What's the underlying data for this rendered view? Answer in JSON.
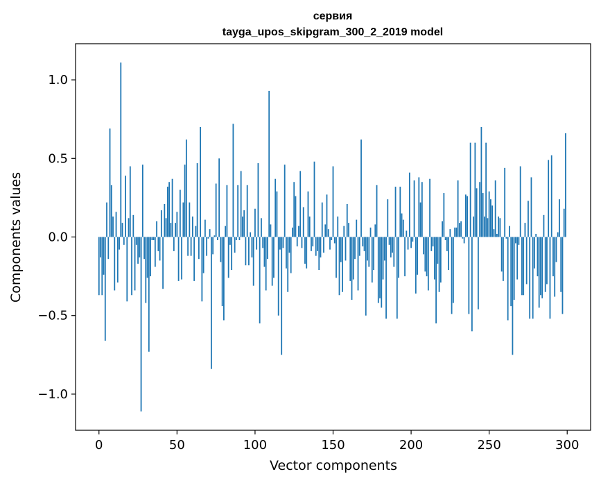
{
  "chart_data": {
    "type": "bar",
    "title": "сервия",
    "subtitle": "tayga_upos_skipgram_300_2_2019 model",
    "xlabel": "Vector components",
    "ylabel": "Components values",
    "xlim": [
      -15,
      315
    ],
    "ylim": [
      -1.23,
      1.23
    ],
    "xticks": [
      0,
      50,
      100,
      150,
      200,
      250,
      300
    ],
    "yticks": [
      -1.0,
      -0.5,
      0.0,
      0.5,
      1.0
    ],
    "xtick_labels": [
      "0",
      "50",
      "100",
      "150",
      "200",
      "250",
      "300"
    ],
    "ytick_labels": [
      "−1.0",
      "−0.5",
      "0.0",
      "0.5",
      "1.0"
    ],
    "grid": false,
    "bar_color": "#1f77b4",
    "values": [
      -0.37,
      -0.13,
      -0.37,
      -0.24,
      -0.66,
      0.22,
      -0.14,
      0.69,
      0.33,
      0.13,
      -0.34,
      0.16,
      -0.29,
      -0.08,
      1.11,
      0.09,
      -0.05,
      0.39,
      -0.41,
      0.12,
      0.45,
      -0.37,
      0.14,
      -0.34,
      -0.05,
      -0.17,
      -0.13,
      -1.11,
      0.46,
      -0.14,
      -0.42,
      -0.26,
      -0.73,
      -0.25,
      -0.02,
      -0.02,
      -0.19,
      0.1,
      -0.09,
      -0.15,
      0.17,
      -0.33,
      0.21,
      0.12,
      0.32,
      0.35,
      0.09,
      0.37,
      -0.09,
      0.09,
      0.16,
      -0.28,
      0.3,
      -0.27,
      0.22,
      0.46,
      0.62,
      -0.12,
      0.22,
      -0.12,
      0.13,
      -0.28,
      0.07,
      0.47,
      -0.14,
      0.7,
      -0.41,
      -0.23,
      0.11,
      -0.12,
      -0.01,
      0.05,
      -0.84,
      -0.11,
      0.01,
      0.34,
      -0.02,
      0.5,
      -0.16,
      -0.44,
      -0.53,
      0.07,
      0.33,
      -0.26,
      -0.05,
      -0.21,
      0.72,
      -0.1,
      -0.02,
      0.33,
      -0.02,
      0.42,
      0.13,
      0.17,
      -0.18,
      0.33,
      -0.18,
      0.03,
      -0.13,
      -0.31,
      0.18,
      -0.08,
      0.47,
      -0.55,
      0.12,
      -0.07,
      -0.19,
      -0.34,
      -0.14,
      0.93,
      0.08,
      -0.31,
      -0.26,
      0.37,
      0.29,
      -0.5,
      -0.08,
      -0.75,
      -0.07,
      0.46,
      -0.2,
      -0.35,
      -0.1,
      -0.23,
      0.06,
      0.35,
      0.26,
      -0.06,
      0.07,
      0.42,
      -0.07,
      0.19,
      -0.17,
      -0.2,
      0.29,
      0.13,
      -0.09,
      -0.06,
      0.48,
      -0.12,
      -0.09,
      -0.21,
      -0.13,
      0.22,
      -0.1,
      0.08,
      0.27,
      0.05,
      -0.08,
      -0.02,
      0.45,
      -0.04,
      -0.26,
      0.13,
      -0.37,
      -0.16,
      -0.35,
      0.07,
      -0.15,
      0.21,
      0.09,
      -0.28,
      -0.4,
      -0.27,
      -0.14,
      0.11,
      -0.34,
      -0.12,
      0.62,
      -0.06,
      -0.09,
      -0.5,
      -0.15,
      -0.19,
      0.06,
      -0.29,
      -0.21,
      0.08,
      0.33,
      -0.42,
      -0.39,
      -0.45,
      -0.27,
      -0.15,
      -0.52,
      0.24,
      -0.05,
      -0.13,
      -0.1,
      -0.19,
      0.32,
      -0.52,
      -0.26,
      0.32,
      0.15,
      0.11,
      -0.25,
      0.04,
      -0.08,
      0.41,
      -0.07,
      -0.03,
      0.36,
      -0.36,
      -0.24,
      0.38,
      0.22,
      0.35,
      -0.11,
      -0.22,
      -0.25,
      -0.34,
      0.37,
      -0.09,
      -0.06,
      -0.27,
      -0.55,
      -0.17,
      -0.35,
      -0.29,
      0.1,
      0.28,
      -0.02,
      -0.09,
      -0.21,
      0.05,
      -0.49,
      -0.42,
      0.06,
      0.06,
      0.36,
      0.09,
      0.1,
      -0.01,
      -0.04,
      0.27,
      0.26,
      -0.49,
      0.6,
      -0.6,
      0.13,
      0.6,
      0.31,
      -0.46,
      0.35,
      0.7,
      0.28,
      0.13,
      0.6,
      0.12,
      0.29,
      0.24,
      0.2,
      0.05,
      0.36,
      0.02,
      0.13,
      0.12,
      -0.22,
      -0.28,
      0.44,
      -0.01,
      -0.53,
      0.07,
      -0.44,
      -0.75,
      -0.4,
      -0.04,
      -0.27,
      -0.05,
      0.45,
      -0.37,
      -0.37,
      0.09,
      -0.3,
      0.23,
      -0.52,
      0.38,
      -0.52,
      -0.2,
      0.02,
      -0.25,
      -0.45,
      -0.37,
      -0.39,
      0.14,
      -0.35,
      -0.3,
      0.49,
      -0.52,
      0.52,
      -0.25,
      -0.38,
      -0.16,
      0.03,
      0.24,
      -0.35,
      -0.49,
      0.18,
      0.66
    ]
  }
}
